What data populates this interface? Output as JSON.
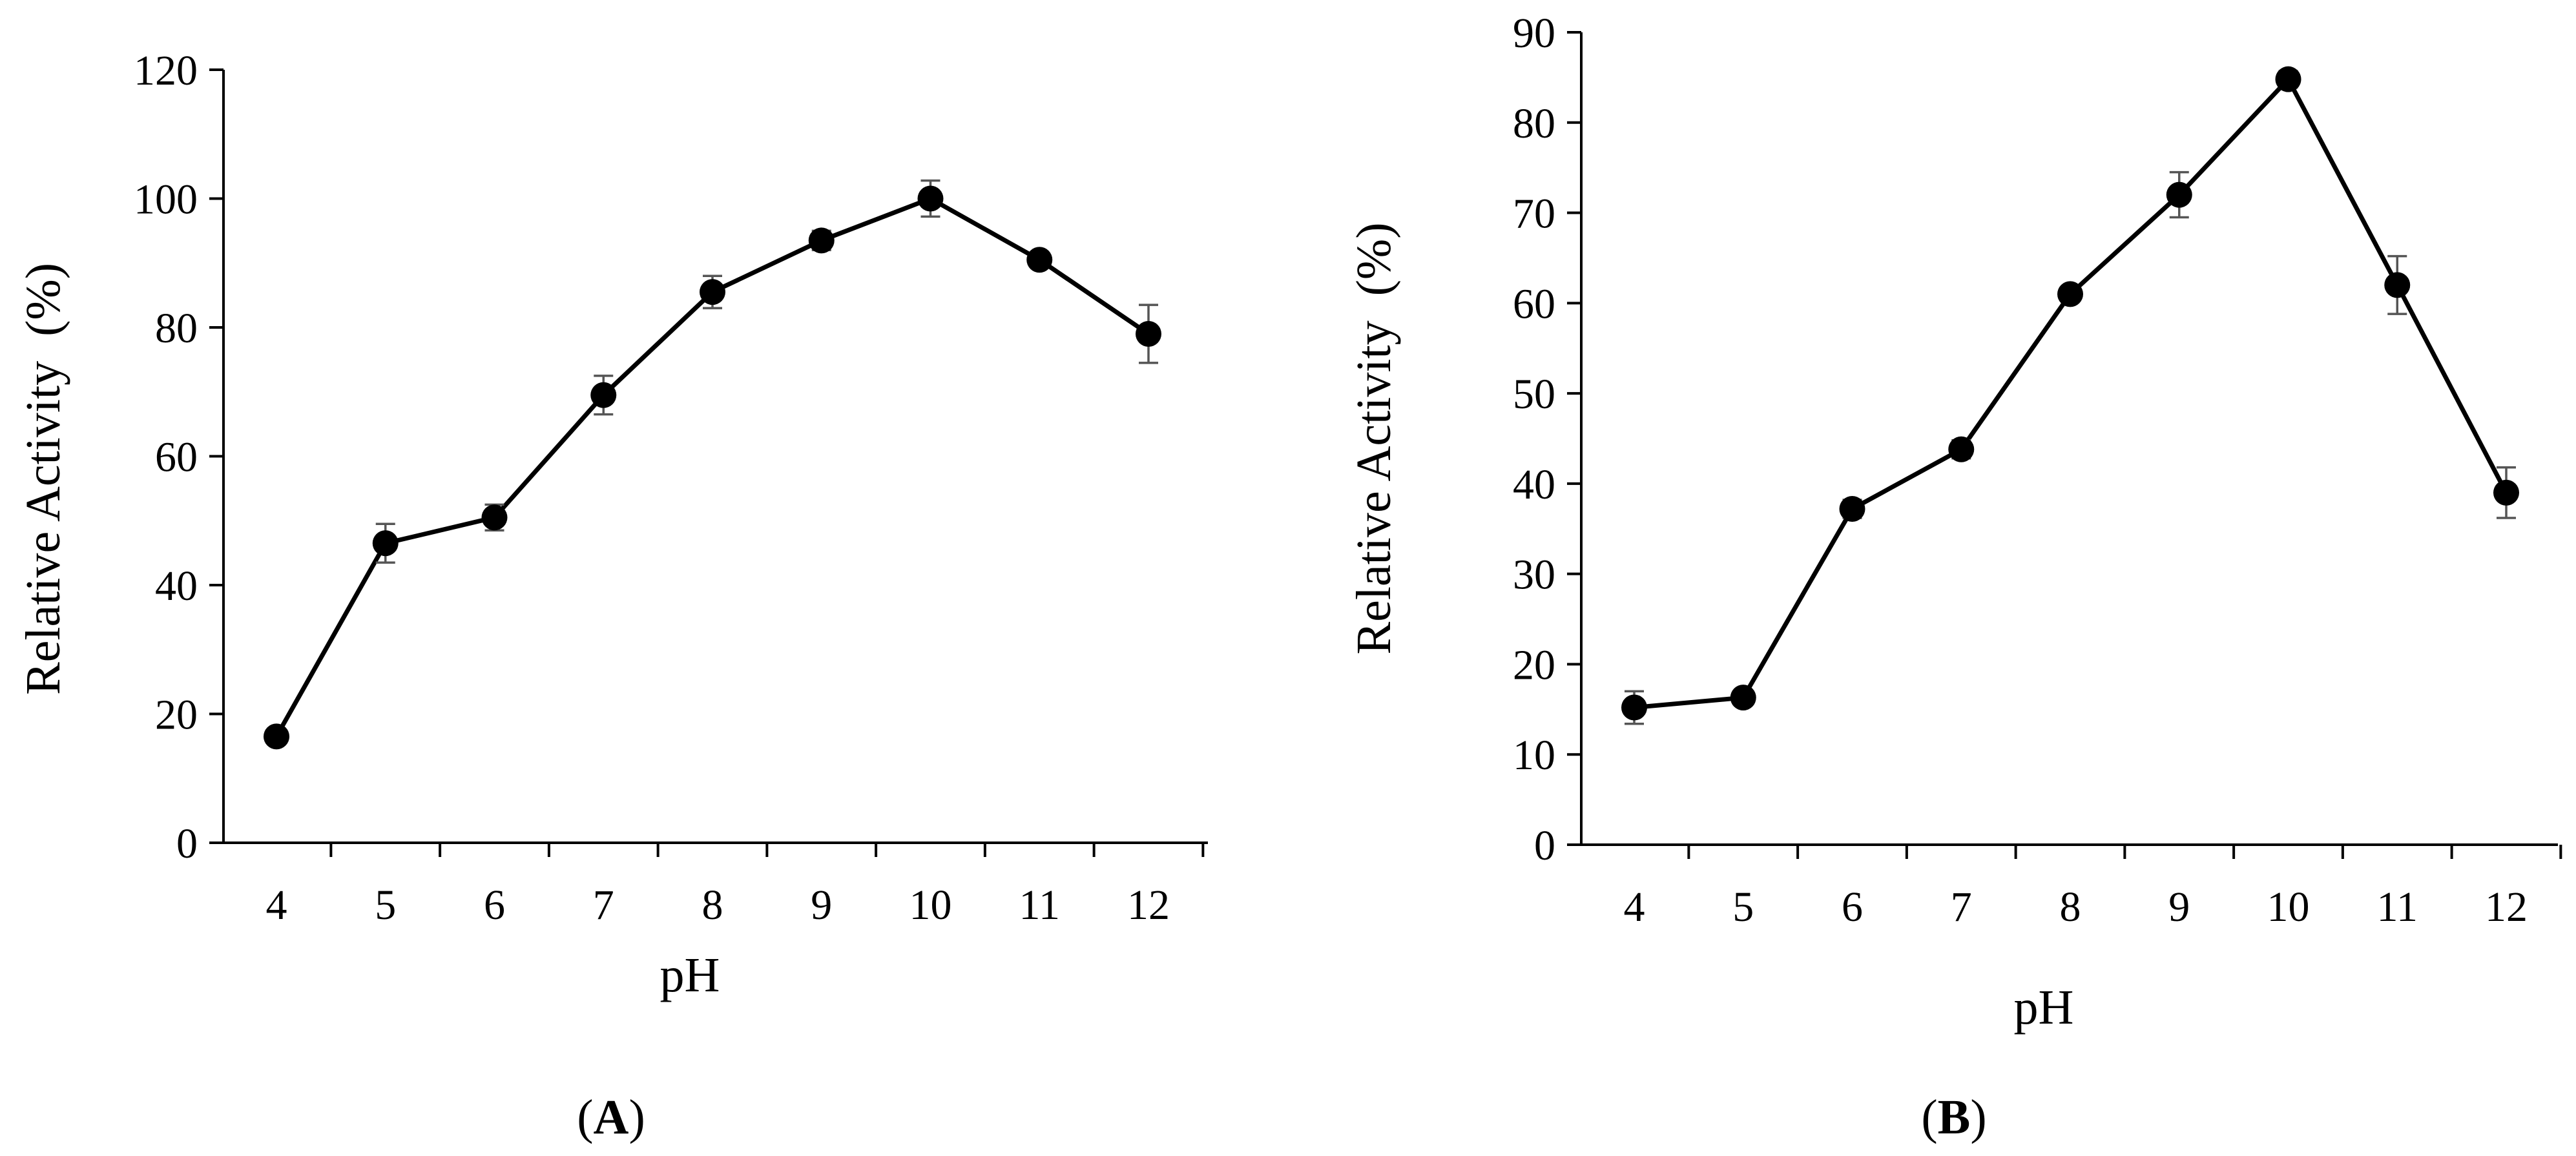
{
  "chart_data": [
    {
      "type": "line",
      "panel_label": "A",
      "xlabel": "pH",
      "ylabel": "Relative Activity  (%)",
      "x": [
        4,
        5,
        6,
        7,
        8,
        9,
        10,
        11,
        12
      ],
      "xlim": [
        4,
        12
      ],
      "ylim": [
        0,
        120
      ],
      "yticks": [
        0,
        20,
        40,
        60,
        80,
        100,
        120
      ],
      "grid": false,
      "series": [
        {
          "values": [
            16.5,
            46.5,
            50.5,
            69.5,
            85.5,
            93.5,
            100,
            90.5,
            79
          ],
          "errors": [
            1.0,
            3.0,
            2.0,
            3.0,
            2.5,
            1.5,
            2.8,
            1.0,
            4.5
          ],
          "color": "#000000",
          "marker": "circle"
        }
      ]
    },
    {
      "type": "line",
      "panel_label": "B",
      "xlabel": "pH",
      "ylabel": "Relative Activity  (%)",
      "x": [
        4,
        5,
        6,
        7,
        8,
        9,
        10,
        11,
        12
      ],
      "xlim": [
        4,
        12
      ],
      "ylim": [
        0,
        90
      ],
      "yticks": [
        0,
        10,
        20,
        30,
        40,
        50,
        60,
        70,
        80,
        90
      ],
      "grid": false,
      "series": [
        {
          "values": [
            15.2,
            16.3,
            37.2,
            43.8,
            61,
            72,
            84.8,
            62,
            39
          ],
          "errors": [
            1.8,
            0.6,
            1.0,
            1.0,
            0.8,
            2.5,
            0.9,
            3.2,
            2.8
          ],
          "color": "#000000",
          "marker": "circle"
        }
      ]
    }
  ]
}
